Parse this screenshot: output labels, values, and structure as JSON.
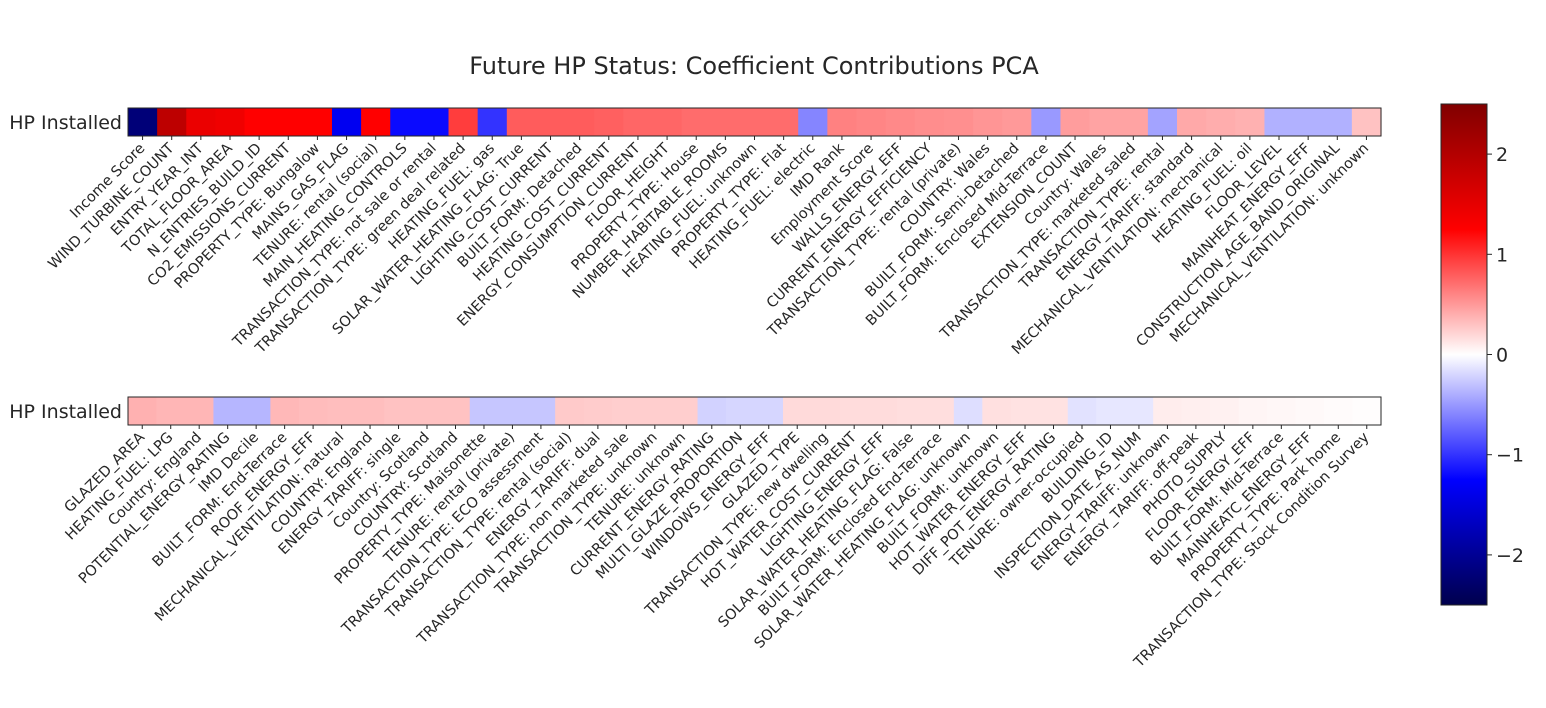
{
  "chart_data": {
    "type": "heatmap",
    "title": "Future HP Status: Coefficient Contributions PCA",
    "colormap": "seismic",
    "vmin": -2.5,
    "vmax": 2.5,
    "colorbar_ticks": [
      -2,
      -1,
      0,
      1,
      2
    ],
    "colorbar_tick_labels": [
      "−2",
      "−1",
      "0",
      "1",
      "2"
    ],
    "panels": [
      {
        "row_label": "HP Installed",
        "items": [
          {
            "label": "Income Score",
            "value": -2.2
          },
          {
            "label": "WIND_TURBINE_COUNT",
            "value": 1.9
          },
          {
            "label": "ENTRY_YEAR_INT",
            "value": 1.45
          },
          {
            "label": "TOTAL_FLOOR_AREA",
            "value": 1.4
          },
          {
            "label": "N_ENTRIES_BUILD_ID",
            "value": 1.25
          },
          {
            "label": "CO2_EMISSIONS_CURRENT",
            "value": 1.25
          },
          {
            "label": "PROPERTY_TYPE: Bungalow",
            "value": 1.25
          },
          {
            "label": "MAINS_GAS_FLAG",
            "value": -1.35
          },
          {
            "label": "TENURE: rental (social)",
            "value": 1.25
          },
          {
            "label": "MAIN_HEATING_CONTROLS",
            "value": -1.2
          },
          {
            "label": "TRANSACTION_TYPE: not sale or rental",
            "value": -1.2
          },
          {
            "label": "TRANSACTION_TYPE: green deal related",
            "value": 0.95
          },
          {
            "label": "HEATING_FUEL: gas",
            "value": -1.0
          },
          {
            "label": "SOLAR_WATER_HEATING_FLAG: True",
            "value": 0.8
          },
          {
            "label": "LIGHTING_COST_CURRENT",
            "value": 0.8
          },
          {
            "label": "BUILT_FORM: Detached",
            "value": 0.8
          },
          {
            "label": "HEATING_COST_CURRENT",
            "value": 0.78
          },
          {
            "label": "ENERGY_CONSUMPTION_CURRENT",
            "value": 0.75
          },
          {
            "label": "FLOOR_HEIGHT",
            "value": 0.75
          },
          {
            "label": "PROPERTY_TYPE: House",
            "value": 0.72
          },
          {
            "label": "NUMBER_HABITABLE_ROOMS",
            "value": 0.72
          },
          {
            "label": "HEATING_FUEL: unknown",
            "value": 0.72
          },
          {
            "label": "PROPERTY_TYPE: Flat",
            "value": 0.72
          },
          {
            "label": "HEATING_FUEL: electric",
            "value": -0.6
          },
          {
            "label": "IMD Rank",
            "value": 0.62
          },
          {
            "label": "Employment Score",
            "value": 0.6
          },
          {
            "label": "WALLS_ENERGY_EFF",
            "value": 0.58
          },
          {
            "label": "CURRENT_ENERGY_EFFICIENCY",
            "value": 0.56
          },
          {
            "label": "TRANSACTION_TYPE: rental (private)",
            "value": 0.55
          },
          {
            "label": "COUNTRY: Wales",
            "value": 0.52
          },
          {
            "label": "BUILT_FORM: Semi-Detached",
            "value": 0.5
          },
          {
            "label": "BUILT_FORM: Enclosed Mid-Terrace",
            "value": -0.5
          },
          {
            "label": "EXTENSION_COUNT",
            "value": 0.48
          },
          {
            "label": "Country: Wales",
            "value": 0.45
          },
          {
            "label": "TRANSACTION_TYPE: marketed saled",
            "value": 0.45
          },
          {
            "label": "TRANSACTION_TYPE: rental",
            "value": -0.45
          },
          {
            "label": "ENERGY_TARIFF: standard",
            "value": 0.42
          },
          {
            "label": "MECHANICAL_VENTILATION: mechanical",
            "value": 0.4
          },
          {
            "label": "HEATING_FUEL: oil",
            "value": 0.38
          },
          {
            "label": "FLOOR_LEVEL",
            "value": -0.38
          },
          {
            "label": "MAINHEAT_ENERGY_EFF",
            "value": -0.38
          },
          {
            "label": "CONSTRUCTION_AGE_BAND_ORIGINAL",
            "value": -0.38
          },
          {
            "label": "MECHANICAL_VENTILATION: unknown",
            "value": 0.3
          }
        ]
      },
      {
        "row_label": "HP Installed",
        "items": [
          {
            "label": "GLAZED_AREA",
            "value": 0.38
          },
          {
            "label": "HEATING_FUEL: LPG",
            "value": 0.36
          },
          {
            "label": "Country: England",
            "value": 0.36
          },
          {
            "label": "POTENTIAL_ENERGY_RATING",
            "value": -0.36
          },
          {
            "label": "IMD Decile",
            "value": -0.36
          },
          {
            "label": "BUILT_FORM: End-Terrace",
            "value": 0.35
          },
          {
            "label": "ROOF_ENERGY_EFF",
            "value": 0.33
          },
          {
            "label": "MECHANICAL_VENTILATION: natural",
            "value": 0.32
          },
          {
            "label": "COUNTRY: England",
            "value": 0.32
          },
          {
            "label": "ENERGY_TARIFF: single",
            "value": 0.3
          },
          {
            "label": "Country: Scotland",
            "value": 0.3
          },
          {
            "label": "COUNTRY: Scotland",
            "value": 0.3
          },
          {
            "label": "PROPERTY_TYPE: Maisonette",
            "value": -0.28
          },
          {
            "label": "TENURE: rental (private)",
            "value": -0.28
          },
          {
            "label": "TRANSACTION_TYPE: ECO assessment",
            "value": -0.28
          },
          {
            "label": "TRANSACTION_TYPE: rental (social)",
            "value": 0.26
          },
          {
            "label": "ENERGY_TARIFF: dual",
            "value": 0.25
          },
          {
            "label": "TRANSACTION_TYPE: non marketed sale",
            "value": 0.24
          },
          {
            "label": "TRANSACTION_TYPE: unknown",
            "value": 0.24
          },
          {
            "label": "TENURE: unknown",
            "value": 0.24
          },
          {
            "label": "CURRENT_ENERGY_RATING",
            "value": -0.22
          },
          {
            "label": "MULTI_GLAZE_PROPORTION",
            "value": -0.2
          },
          {
            "label": "WINDOWS_ENERGY_EFF",
            "value": -0.2
          },
          {
            "label": "GLAZED_TYPE",
            "value": 0.18
          },
          {
            "label": "TRANSACTION_TYPE: new dwelling",
            "value": 0.18
          },
          {
            "label": "HOT_WATER_COST_CURRENT",
            "value": 0.17
          },
          {
            "label": "LIGHTING_ENERGY_EFF",
            "value": 0.17
          },
          {
            "label": "SOLAR_WATER_HEATING_FLAG: False",
            "value": 0.16
          },
          {
            "label": "BUILT_FORM: Enclosed End-Terrace",
            "value": 0.16
          },
          {
            "label": "SOLAR_WATER_HEATING_FLAG: unknown",
            "value": -0.16
          },
          {
            "label": "BUILT_FORM: unknown",
            "value": 0.15
          },
          {
            "label": "HOT_WATER_ENERGY_EFF",
            "value": 0.14
          },
          {
            "label": "DIFF_POT_ENERGY_RATING",
            "value": 0.14
          },
          {
            "label": "TENURE: owner-occupied",
            "value": -0.14
          },
          {
            "label": "BUILDING_ID",
            "value": -0.12
          },
          {
            "label": "INSPECTION_DATE_AS_NUM",
            "value": -0.12
          },
          {
            "label": "ENERGY_TARIFF: unknown",
            "value": 0.09
          },
          {
            "label": "ENERGY_TARIFF: off-peak",
            "value": 0.08
          },
          {
            "label": "PHOTO_SUPPLY",
            "value": 0.07
          },
          {
            "label": "FLOOR_ENERGY_EFF",
            "value": 0.05
          },
          {
            "label": "BUILT_FORM: Mid-Terrace",
            "value": 0.04
          },
          {
            "label": "MAINHEATC_ENERGY_EFF",
            "value": 0.03
          },
          {
            "label": "PROPERTY_TYPE: Park home",
            "value": 0.02
          },
          {
            "label": "TRANSACTION_TYPE: Stock Condition Survey",
            "value": 0.01
          }
        ]
      }
    ]
  }
}
